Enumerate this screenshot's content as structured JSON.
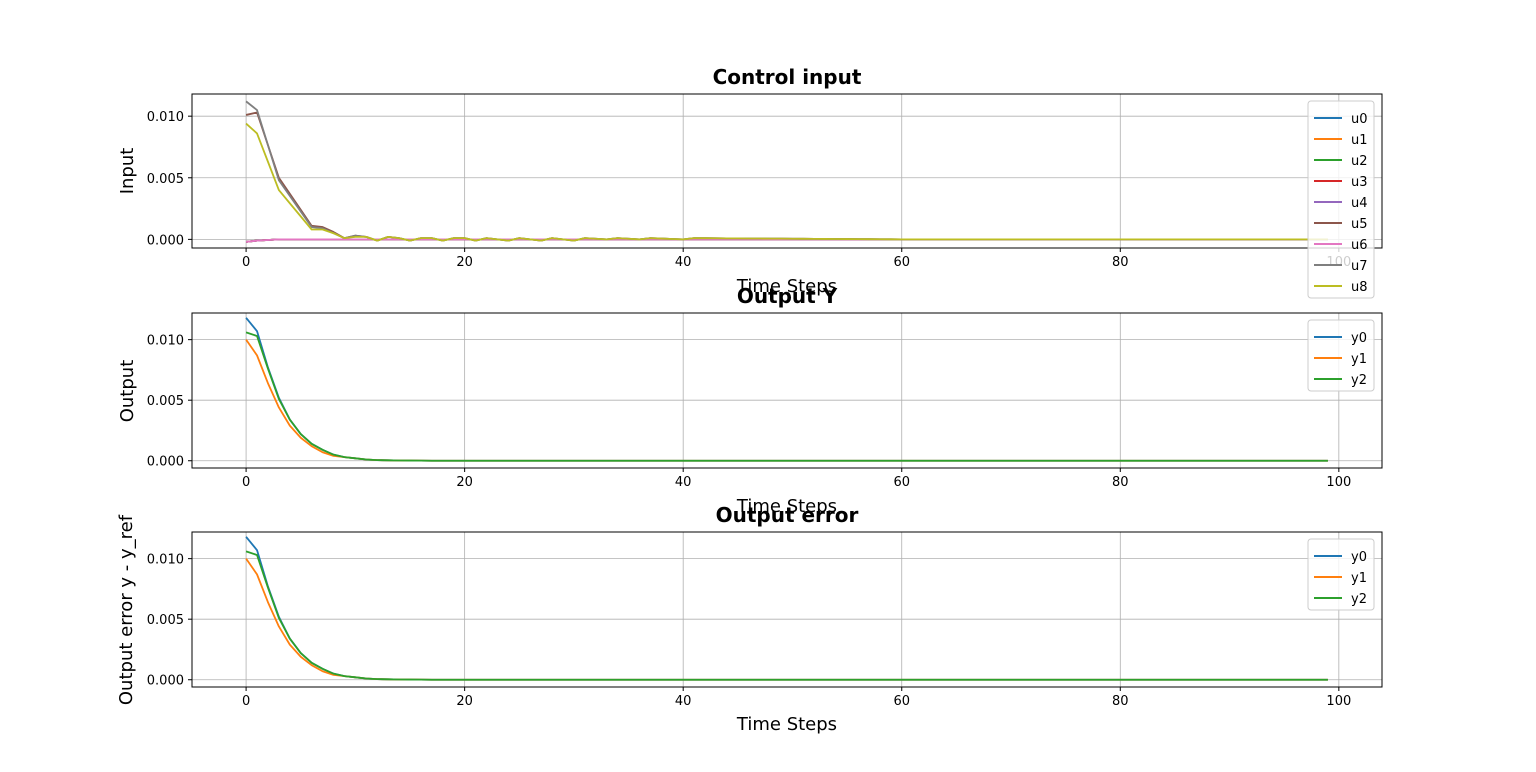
{
  "chart_data": [
    {
      "type": "line",
      "title": "Control input",
      "xlabel": "Time Steps",
      "ylabel": "Input",
      "xlim": [
        -4.95,
        103.95
      ],
      "ylim": [
        -0.0007,
        0.0118
      ],
      "xticks": [
        0,
        20,
        40,
        60,
        80,
        100
      ],
      "yticks": [
        0.0,
        0.005,
        0.01
      ],
      "ytick_labels": [
        "0.000",
        "0.005",
        "0.010"
      ],
      "grid": true,
      "legend_position": "top-right",
      "x": {
        "start": 0,
        "end": 99
      },
      "series": [
        {
          "name": "u0",
          "color": "#1f77b4",
          "points": [
            [
              0,
              -0.0002
            ],
            [
              1,
              -0.0001
            ],
            [
              3,
              0.0
            ],
            [
              99,
              0.0
            ]
          ]
        },
        {
          "name": "u1",
          "color": "#ff7f0e",
          "points": [
            [
              0,
              -0.0002
            ],
            [
              1,
              -0.0001
            ],
            [
              3,
              0.0
            ],
            [
              99,
              0.0
            ]
          ]
        },
        {
          "name": "u2",
          "color": "#2ca02c",
          "points": [
            [
              0,
              -0.0002
            ],
            [
              1,
              -0.0001
            ],
            [
              3,
              0.0
            ],
            [
              99,
              0.0
            ]
          ]
        },
        {
          "name": "u3",
          "color": "#d62728",
          "points": [
            [
              0,
              -0.0002
            ],
            [
              1,
              -0.0001
            ],
            [
              3,
              0.0
            ],
            [
              99,
              0.0
            ]
          ]
        },
        {
          "name": "u4",
          "color": "#9467bd",
          "points": [
            [
              0,
              -0.0002
            ],
            [
              1,
              -0.0001
            ],
            [
              3,
              0.0
            ],
            [
              99,
              0.0
            ]
          ]
        },
        {
          "name": "u5",
          "color": "#8c564b",
          "points": [
            [
              0,
              0.0101
            ],
            [
              1,
              0.0103
            ],
            [
              3,
              0.005
            ],
            [
              6,
              0.0011
            ],
            [
              7,
              0.001
            ],
            [
              8,
              0.0006
            ],
            [
              9,
              0.0001
            ],
            [
              10,
              0.0003
            ],
            [
              11,
              0.0002
            ],
            [
              12,
              -0.0001
            ],
            [
              13,
              0.0002
            ],
            [
              14,
              0.0001
            ],
            [
              15,
              -0.0001
            ],
            [
              16,
              0.0001
            ],
            [
              17,
              0.0001
            ],
            [
              18,
              -0.0001
            ],
            [
              19,
              0.0001
            ],
            [
              20,
              0.0001
            ],
            [
              21,
              -0.0001
            ],
            [
              22,
              0.0001
            ],
            [
              23,
              0.0
            ],
            [
              24,
              -0.0001
            ],
            [
              25,
              0.0001
            ],
            [
              26,
              0.0
            ],
            [
              27,
              -0.0001
            ],
            [
              28,
              0.0001
            ],
            [
              29,
              0.0
            ],
            [
              30,
              -0.0001
            ],
            [
              31,
              0.0001
            ],
            [
              33,
              0.0
            ],
            [
              34,
              0.0001
            ],
            [
              36,
              0.0
            ],
            [
              37,
              0.0001
            ],
            [
              40,
              0.0
            ],
            [
              41,
              0.0001
            ],
            [
              60,
              0.0
            ],
            [
              99,
              0.0
            ]
          ]
        },
        {
          "name": "u6",
          "color": "#e377c2",
          "points": [
            [
              0,
              -0.0002
            ],
            [
              1,
              -0.0001
            ],
            [
              3,
              0.0
            ],
            [
              99,
              0.0
            ]
          ]
        },
        {
          "name": "u7",
          "color": "#7f7f7f",
          "points": [
            [
              0,
              0.0112
            ],
            [
              1,
              0.0105
            ],
            [
              3,
              0.0048
            ],
            [
              6,
              0.001
            ],
            [
              7,
              0.0009
            ],
            [
              8,
              0.0005
            ],
            [
              9,
              0.0001
            ],
            [
              10,
              0.0003
            ],
            [
              11,
              0.0002
            ],
            [
              12,
              -0.0001
            ],
            [
              13,
              0.0002
            ],
            [
              14,
              0.0001
            ],
            [
              15,
              -0.0001
            ],
            [
              16,
              0.0001
            ],
            [
              17,
              0.0001
            ],
            [
              18,
              -0.0001
            ],
            [
              19,
              0.0001
            ],
            [
              20,
              0.0001
            ],
            [
              21,
              -0.0001
            ],
            [
              22,
              0.0001
            ],
            [
              23,
              0.0
            ],
            [
              24,
              -0.0001
            ],
            [
              25,
              0.0001
            ],
            [
              26,
              0.0
            ],
            [
              27,
              -0.0001
            ],
            [
              28,
              0.0001
            ],
            [
              29,
              0.0
            ],
            [
              30,
              -0.0001
            ],
            [
              31,
              0.0001
            ],
            [
              33,
              0.0
            ],
            [
              34,
              0.0001
            ],
            [
              36,
              0.0
            ],
            [
              37,
              0.0001
            ],
            [
              40,
              0.0
            ],
            [
              41,
              0.0001
            ],
            [
              60,
              0.0
            ],
            [
              99,
              0.0
            ]
          ]
        },
        {
          "name": "u8",
          "color": "#bcbd22",
          "points": [
            [
              0,
              0.0094
            ],
            [
              1,
              0.0086
            ],
            [
              3,
              0.004
            ],
            [
              6,
              0.0008
            ],
            [
              7,
              0.0008
            ],
            [
              8,
              0.0005
            ],
            [
              9,
              0.0001
            ],
            [
              10,
              0.0002
            ],
            [
              11,
              0.0002
            ],
            [
              12,
              -0.0001
            ],
            [
              13,
              0.0002
            ],
            [
              14,
              0.0001
            ],
            [
              15,
              -0.0001
            ],
            [
              16,
              0.0001
            ],
            [
              17,
              0.0001
            ],
            [
              18,
              -0.0001
            ],
            [
              19,
              0.0001
            ],
            [
              20,
              0.0001
            ],
            [
              21,
              -0.0001
            ],
            [
              22,
              0.0001
            ],
            [
              23,
              0.0
            ],
            [
              24,
              -0.0001
            ],
            [
              25,
              0.0001
            ],
            [
              26,
              0.0
            ],
            [
              27,
              -0.0001
            ],
            [
              28,
              0.0001
            ],
            [
              29,
              0.0
            ],
            [
              30,
              -0.0001
            ],
            [
              31,
              0.0001
            ],
            [
              33,
              0.0
            ],
            [
              34,
              0.0001
            ],
            [
              36,
              0.0
            ],
            [
              37,
              0.0001
            ],
            [
              40,
              0.0
            ],
            [
              41,
              0.0001
            ],
            [
              60,
              0.0
            ],
            [
              99,
              0.0
            ]
          ]
        }
      ]
    },
    {
      "type": "line",
      "title": "Output Y",
      "xlabel": "Time Steps",
      "ylabel": "Output",
      "xlim": [
        -4.95,
        103.95
      ],
      "ylim": [
        -0.0006,
        0.0122
      ],
      "xticks": [
        0,
        20,
        40,
        60,
        80,
        100
      ],
      "yticks": [
        0.0,
        0.005,
        0.01
      ],
      "ytick_labels": [
        "0.000",
        "0.005",
        "0.010"
      ],
      "grid": true,
      "legend_position": "top-right",
      "series": [
        {
          "name": "y0",
          "color": "#1f77b4",
          "points": [
            [
              0,
              0.0118
            ],
            [
              1,
              0.0107
            ],
            [
              2,
              0.0077
            ],
            [
              3,
              0.0052
            ],
            [
              4,
              0.0034
            ],
            [
              5,
              0.0022
            ],
            [
              6,
              0.0014
            ],
            [
              7,
              0.0009
            ],
            [
              8,
              0.0005
            ],
            [
              9,
              0.0003
            ],
            [
              10,
              0.0002
            ],
            [
              11,
              0.0001
            ],
            [
              12,
              5e-05
            ],
            [
              14,
              2e-05
            ],
            [
              17,
              0.0
            ],
            [
              99,
              0.0
            ]
          ]
        },
        {
          "name": "y1",
          "color": "#ff7f0e",
          "points": [
            [
              0,
              0.01
            ],
            [
              1,
              0.0087
            ],
            [
              2,
              0.0064
            ],
            [
              3,
              0.0044
            ],
            [
              4,
              0.0029
            ],
            [
              5,
              0.0019
            ],
            [
              6,
              0.0012
            ],
            [
              7,
              0.0007
            ],
            [
              8,
              0.0004
            ],
            [
              9,
              0.0003
            ],
            [
              10,
              0.0002
            ],
            [
              11,
              0.0001
            ],
            [
              12,
              5e-05
            ],
            [
              14,
              2e-05
            ],
            [
              17,
              0.0
            ],
            [
              99,
              0.0
            ]
          ]
        },
        {
          "name": "y2",
          "color": "#2ca02c",
          "points": [
            [
              0,
              0.0106
            ],
            [
              1,
              0.0103
            ],
            [
              2,
              0.0076
            ],
            [
              3,
              0.0051
            ],
            [
              4,
              0.0034
            ],
            [
              5,
              0.0022
            ],
            [
              6,
              0.0014
            ],
            [
              7,
              0.0009
            ],
            [
              8,
              0.0005
            ],
            [
              9,
              0.0003
            ],
            [
              10,
              0.0002
            ],
            [
              11,
              0.0001
            ],
            [
              12,
              5e-05
            ],
            [
              14,
              2e-05
            ],
            [
              17,
              0.0
            ],
            [
              99,
              0.0
            ]
          ]
        }
      ]
    },
    {
      "type": "line",
      "title": "Output error",
      "xlabel": "Time Steps",
      "ylabel": "Output error y - y_ref",
      "xlim": [
        -4.95,
        103.95
      ],
      "ylim": [
        -0.0006,
        0.0122
      ],
      "xticks": [
        0,
        20,
        40,
        60,
        80,
        100
      ],
      "yticks": [
        0.0,
        0.005,
        0.01
      ],
      "ytick_labels": [
        "0.000",
        "0.005",
        "0.010"
      ],
      "grid": true,
      "legend_position": "top-right",
      "series": [
        {
          "name": "y0",
          "color": "#1f77b4",
          "points": [
            [
              0,
              0.0118
            ],
            [
              1,
              0.0107
            ],
            [
              2,
              0.0077
            ],
            [
              3,
              0.0052
            ],
            [
              4,
              0.0034
            ],
            [
              5,
              0.0022
            ],
            [
              6,
              0.0014
            ],
            [
              7,
              0.0009
            ],
            [
              8,
              0.0005
            ],
            [
              9,
              0.0003
            ],
            [
              10,
              0.0002
            ],
            [
              11,
              0.0001
            ],
            [
              12,
              5e-05
            ],
            [
              14,
              2e-05
            ],
            [
              17,
              0.0
            ],
            [
              99,
              0.0
            ]
          ]
        },
        {
          "name": "y1",
          "color": "#ff7f0e",
          "points": [
            [
              0,
              0.01
            ],
            [
              1,
              0.0087
            ],
            [
              2,
              0.0064
            ],
            [
              3,
              0.0044
            ],
            [
              4,
              0.0029
            ],
            [
              5,
              0.0019
            ],
            [
              6,
              0.0012
            ],
            [
              7,
              0.0007
            ],
            [
              8,
              0.0004
            ],
            [
              9,
              0.0003
            ],
            [
              10,
              0.0002
            ],
            [
              11,
              0.0001
            ],
            [
              12,
              5e-05
            ],
            [
              14,
              2e-05
            ],
            [
              17,
              0.0
            ],
            [
              99,
              0.0
            ]
          ]
        },
        {
          "name": "y2",
          "color": "#2ca02c",
          "points": [
            [
              0,
              0.0106
            ],
            [
              1,
              0.0103
            ],
            [
              2,
              0.0076
            ],
            [
              3,
              0.0051
            ],
            [
              4,
              0.0034
            ],
            [
              5,
              0.0022
            ],
            [
              6,
              0.0014
            ],
            [
              7,
              0.0009
            ],
            [
              8,
              0.0005
            ],
            [
              9,
              0.0003
            ],
            [
              10,
              0.0002
            ],
            [
              11,
              0.0001
            ],
            [
              12,
              5e-05
            ],
            [
              14,
              2e-05
            ],
            [
              17,
              0.0
            ],
            [
              99,
              0.0
            ]
          ]
        }
      ]
    }
  ]
}
